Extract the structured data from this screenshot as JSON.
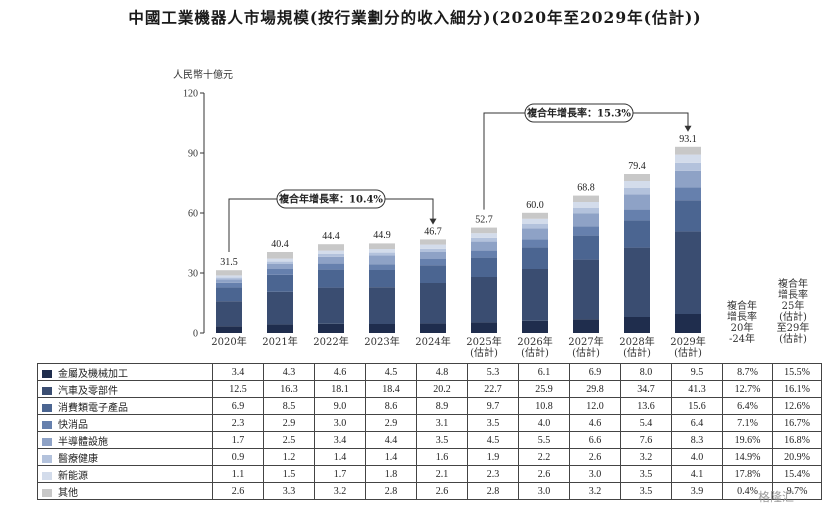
{
  "title": "中國工業機器人市場規模(按行業劃分的收入細分)(2020年至2029年(估計))",
  "chart_data": {
    "type": "bar",
    "stacked": true,
    "unit_label": "人民幣十億元",
    "ylim": [
      0,
      120
    ],
    "yticks": [
      "0",
      "30",
      "60",
      "90",
      "120"
    ],
    "categories": [
      "2020年",
      "2021年",
      "2022年",
      "2023年",
      "2024年",
      "2025年\n(估計)",
      "2026年\n(估計)",
      "2027年\n(估計)",
      "2028年\n(估計)",
      "2029年\n(估計)"
    ],
    "totals": [
      31.5,
      40.4,
      44.4,
      44.9,
      46.7,
      52.7,
      60.0,
      68.8,
      79.4,
      93.1
    ],
    "cagr_headers": [
      "複合年\n增長率\n20年\n-24年",
      "複合年\n增長率\n25年\n(估計)\n至29年\n(估計)"
    ],
    "series": [
      {
        "name": "金屬及機械加工",
        "color": "#1f2d4d",
        "values": [
          3.4,
          4.3,
          4.6,
          4.5,
          4.8,
          5.3,
          6.1,
          6.9,
          8.0,
          9.5
        ],
        "cagr": [
          "8.7%",
          "15.5%"
        ]
      },
      {
        "name": "汽車及零部件",
        "color": "#3a4d71",
        "values": [
          12.5,
          16.3,
          18.1,
          18.4,
          20.2,
          22.7,
          25.9,
          29.8,
          34.7,
          41.3
        ],
        "cagr": [
          "12.7%",
          "16.1%"
        ]
      },
      {
        "name": "消費類電子產品",
        "color": "#4b6591",
        "values": [
          6.9,
          8.5,
          9.0,
          8.6,
          8.9,
          9.7,
          10.8,
          12.0,
          13.6,
          15.6
        ],
        "cagr": [
          "6.4%",
          "12.6%"
        ]
      },
      {
        "name": "快消品",
        "color": "#6680ad",
        "values": [
          2.3,
          2.9,
          3.0,
          2.9,
          3.1,
          3.5,
          4.0,
          4.6,
          5.4,
          6.4
        ],
        "cagr": [
          "7.1%",
          "16.7%"
        ]
      },
      {
        "name": "半導體設施",
        "color": "#8ea2c6",
        "values": [
          1.7,
          2.5,
          3.4,
          4.4,
          3.5,
          4.5,
          5.5,
          6.6,
          7.6,
          8.3
        ],
        "cagr": [
          "19.6%",
          "16.8%"
        ]
      },
      {
        "name": "醫療健康",
        "color": "#b3c2dc",
        "values": [
          0.9,
          1.2,
          1.4,
          1.4,
          1.6,
          1.9,
          2.2,
          2.6,
          3.2,
          4.0
        ],
        "cagr": [
          "14.9%",
          "20.9%"
        ]
      },
      {
        "name": "新能源",
        "color": "#d3dceb",
        "values": [
          1.1,
          1.5,
          1.7,
          1.8,
          2.1,
          2.3,
          2.6,
          3.0,
          3.5,
          4.1
        ],
        "cagr": [
          "17.8%",
          "15.4%"
        ]
      },
      {
        "name": "其他",
        "color": "#c8c8c8",
        "values": [
          2.6,
          3.3,
          3.2,
          2.8,
          2.6,
          2.8,
          3.0,
          3.2,
          3.5,
          3.9
        ],
        "cagr": [
          "0.4%",
          "9.7%"
        ]
      }
    ],
    "annotations": [
      {
        "label": "複合年增長率：10.4%",
        "from": 0,
        "to": 4
      },
      {
        "label": "複合年增長率：15.3%",
        "from": 5,
        "to": 9
      }
    ]
  },
  "watermark": "格隆汇"
}
